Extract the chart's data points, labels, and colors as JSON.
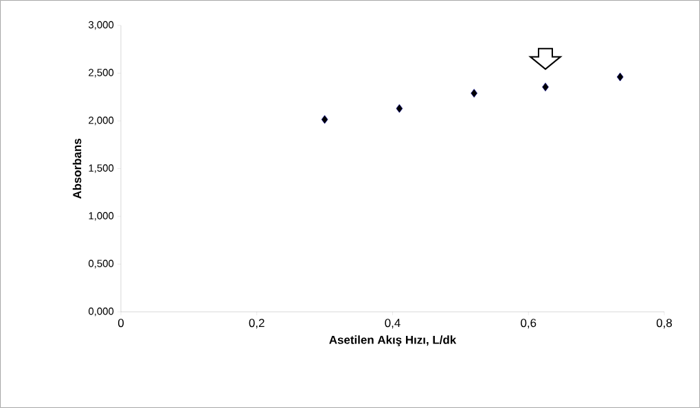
{
  "chart_data": {
    "type": "scatter",
    "xlabel": "Asetilen Akış Hızı, L/dk",
    "ylabel": "Absorbans",
    "x": [
      0.3,
      0.41,
      0.52,
      0.625,
      0.735
    ],
    "values": [
      2.015,
      2.13,
      2.29,
      2.355,
      2.46
    ],
    "color": "#000000",
    "marker": "diamond",
    "xlim": [
      0,
      0.8
    ],
    "xticks": [
      0,
      {
        "value": 0.2,
        "label": "0,2"
      },
      {
        "value": 0.4,
        "label": "0,4"
      },
      {
        "value": 0.6,
        "label": "0,6"
      },
      {
        "value": 0.8,
        "label": "0,8"
      }
    ],
    "ylim": [
      0,
      3
    ],
    "yticks": [
      {
        "value": 0,
        "label": "0,000"
      },
      {
        "value": 0.5,
        "label": "0,500"
      },
      {
        "value": 1,
        "label": "1,000"
      },
      {
        "value": 1.5,
        "label": "1,500"
      },
      {
        "value": 2,
        "label": "2,000"
      },
      {
        "value": 2.5,
        "label": "2,500"
      },
      {
        "value": 3,
        "label": "3,000"
      }
    ],
    "grid": false
  }
}
